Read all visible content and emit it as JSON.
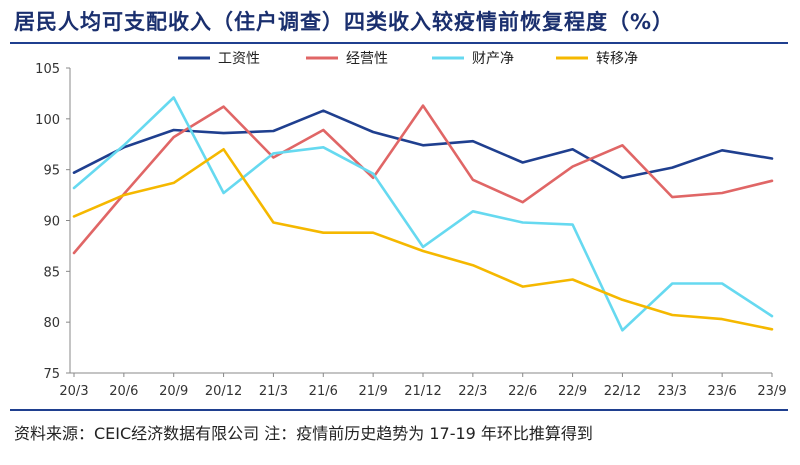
{
  "header": {
    "title": "居民人均可支配收入（住户调查）四类收入较疫情前恢复程度（%）"
  },
  "footer": {
    "source": "资料来源：CEIC经济数据有限公司   注：疫情前历史趋势为 17-19 年环比推算得到"
  },
  "chart_data": {
    "type": "line",
    "title": "居民人均可支配收入（住户调查）四类收入较疫情前恢复程度（%）",
    "categories": [
      "20/3",
      "20/6",
      "20/9",
      "20/12",
      "21/3",
      "21/6",
      "21/9",
      "21/12",
      "22/3",
      "22/6",
      "22/9",
      "22/12",
      "23/3",
      "23/6",
      "23/9"
    ],
    "ylim": [
      75,
      105
    ],
    "yticks": [
      75,
      80,
      85,
      90,
      95,
      100,
      105
    ],
    "grid": false,
    "legend_position": "top",
    "series": [
      {
        "name": "工资性",
        "color": "#1f3f8f",
        "values": [
          94.7,
          97.2,
          98.9,
          98.6,
          98.8,
          100.8,
          98.7,
          97.4,
          97.8,
          95.7,
          97.0,
          94.2,
          95.2,
          96.9,
          96.1
        ]
      },
      {
        "name": "经营性",
        "color": "#e06666",
        "values": [
          86.8,
          92.6,
          98.2,
          101.2,
          96.2,
          98.9,
          94.2,
          101.3,
          94.0,
          91.8,
          95.3,
          97.4,
          92.3,
          92.7,
          93.9
        ]
      },
      {
        "name": "财产净",
        "color": "#66d9f0",
        "values": [
          93.2,
          97.4,
          102.1,
          92.7,
          96.6,
          97.2,
          94.6,
          87.4,
          90.9,
          89.8,
          89.6,
          79.2,
          83.8,
          83.8,
          80.6
        ]
      },
      {
        "name": "转移净",
        "color": "#f5b800",
        "values": [
          90.4,
          92.5,
          93.7,
          97.0,
          89.8,
          88.8,
          88.8,
          87.0,
          85.6,
          83.5,
          84.2,
          82.2,
          80.7,
          80.3,
          79.3
        ]
      }
    ]
  }
}
